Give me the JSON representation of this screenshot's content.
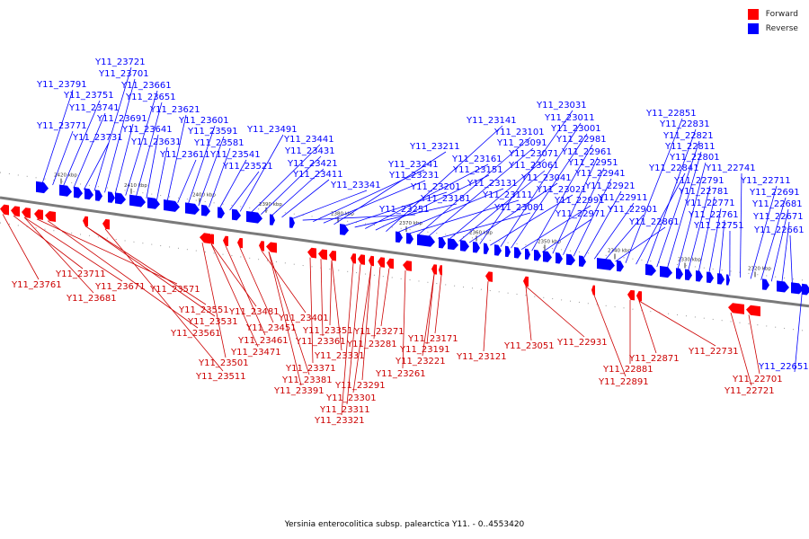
{
  "legend": {
    "forward": {
      "label": "Forward",
      "color": "#ff0000"
    },
    "reverse": {
      "label": "Reverse",
      "color": "#0000ff"
    }
  },
  "caption": "Yersinia enterocolitica subsp. palearctica Y11. - 0..4553420",
  "backbone_color": "#777777",
  "ticks": [
    "2420 kbp",
    "2410 kbp",
    "2400 kbp",
    "2390 kbp",
    "2380 kbp",
    "2370 kbp",
    "2360 kbp",
    "2350 kbp",
    "2340 kbp",
    "2330 kbp",
    "2320 kbp"
  ],
  "reverse_genes": [
    "Y11_23791",
    "Y11_23771",
    "Y11_23751",
    "Y11_23741",
    "Y11_23731",
    "Y11_23721",
    "Y11_23701",
    "Y11_23691",
    "Y11_23661",
    "Y11_23651",
    "Y11_23641",
    "Y11_23631",
    "Y11_23621",
    "Y11_23611",
    "Y11_23601",
    "Y11_23591",
    "Y11_23581",
    "Y11_23541",
    "Y11_23521",
    "Y11_23491",
    "Y11_23441",
    "Y11_23431",
    "Y11_23421",
    "Y11_23411",
    "Y11_23341",
    "Y11_23251",
    "Y11_23241",
    "Y11_23231",
    "Y11_23211",
    "Y11_23201",
    "Y11_23181",
    "Y11_23161",
    "Y11_23151",
    "Y11_23141",
    "Y11_23131",
    "Y11_23111",
    "Y11_23101",
    "Y11_23091",
    "Y11_23081",
    "Y11_23071",
    "Y11_23061",
    "Y11_23041",
    "Y11_23031",
    "Y11_23021",
    "Y11_23011",
    "Y11_23001",
    "Y11_22991",
    "Y11_22981",
    "Y11_22971",
    "Y11_22961",
    "Y11_22951",
    "Y11_22941",
    "Y11_22921",
    "Y11_22911",
    "Y11_22901",
    "Y11_22861",
    "Y11_22851",
    "Y11_22841",
    "Y11_22831",
    "Y11_22821",
    "Y11_22811",
    "Y11_22801",
    "Y11_22791",
    "Y11_22781",
    "Y11_22771",
    "Y11_22761",
    "Y11_22751",
    "Y11_22741",
    "Y11_22711",
    "Y11_22691",
    "Y11_22681",
    "Y11_22671",
    "Y11_22661",
    "Y11_22651"
  ],
  "forward_genes": [
    "Y11_23761",
    "Y11_23711",
    "Y11_23681",
    "Y11_23671",
    "Y11_23571",
    "Y11_23561",
    "Y11_23551",
    "Y11_23531",
    "Y11_23511",
    "Y11_23501",
    "Y11_23481",
    "Y11_23471",
    "Y11_23461",
    "Y11_23451",
    "Y11_23401",
    "Y11_23391",
    "Y11_23381",
    "Y11_23371",
    "Y11_23361",
    "Y11_23351",
    "Y11_23331",
    "Y11_23321",
    "Y11_23311",
    "Y11_23301",
    "Y11_23291",
    "Y11_23281",
    "Y11_23271",
    "Y11_23261",
    "Y11_23221",
    "Y11_23191",
    "Y11_23171",
    "Y11_23121",
    "Y11_23051",
    "Y11_22931",
    "Y11_22891",
    "Y11_22881",
    "Y11_22871",
    "Y11_22731",
    "Y11_22721",
    "Y11_22701"
  ]
}
